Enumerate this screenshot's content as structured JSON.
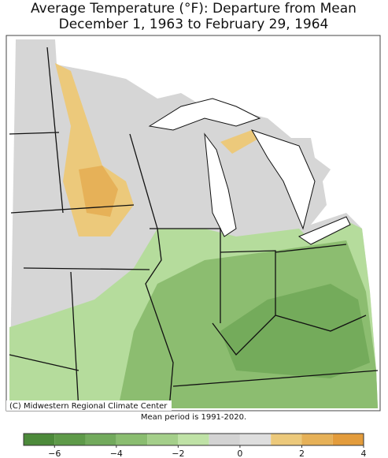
{
  "header": {
    "title": "Average Temperature (°F): Departure from Mean",
    "subtitle": "December 1, 1963 to February 29, 1964"
  },
  "map": {
    "credit": "(C) Midwestern Regional Climate Center",
    "note": "Mean period is 1991-2020."
  },
  "legend": {
    "type": "colorbar",
    "range": [
      -7,
      4
    ],
    "bins": [
      -7,
      -6,
      -5,
      -4,
      -3,
      -2,
      -1,
      0,
      1,
      2,
      3,
      4
    ],
    "colors": [
      "#4c8a3a",
      "#5e9a49",
      "#72aa5c",
      "#8abd70",
      "#a4cf8a",
      "#bfe2a6",
      "#d3d3d3",
      "#dedede",
      "#ecc97b",
      "#e6b158",
      "#e39c3c"
    ],
    "ticks": [
      {
        "value": -6,
        "label": "−6"
      },
      {
        "value": -4,
        "label": "−4"
      },
      {
        "value": -2,
        "label": "−2"
      },
      0,
      2,
      4
    ]
  }
}
